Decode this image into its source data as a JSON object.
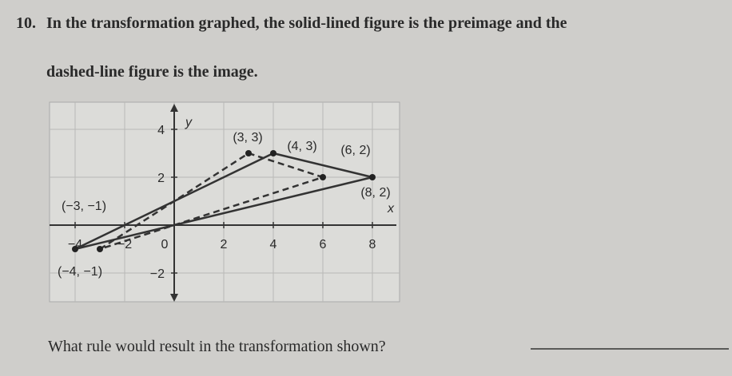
{
  "question": {
    "number": "10.",
    "text": "In the transformation graphed, the solid-lined figure is the preimage and the",
    "text2": "dashed-line figure is the image."
  },
  "graph": {
    "x_label": "x",
    "y_label": "y",
    "xticks": [
      {
        "value": -4,
        "label": "−4"
      },
      {
        "value": -2,
        "label": "−2"
      },
      0,
      2,
      4,
      6,
      8
    ],
    "yticks": [
      {
        "value": -2,
        "label": "−2"
      },
      2,
      4
    ],
    "preimage": [
      {
        "x": -4,
        "y": -1,
        "label": "(−4, −1)"
      },
      {
        "x": 4,
        "y": 3,
        "label": "(4, 3)"
      },
      {
        "x": 8,
        "y": 2,
        "label": "(8, 2)"
      }
    ],
    "image": [
      {
        "x": -3,
        "y": -1,
        "label": "(−3, −1)"
      },
      {
        "x": 3,
        "y": 3,
        "label": "(3, 3)"
      },
      {
        "x": 6,
        "y": 2,
        "label": "(6, 2)"
      }
    ]
  },
  "prompt": "What rule would result in the transformation shown?"
}
